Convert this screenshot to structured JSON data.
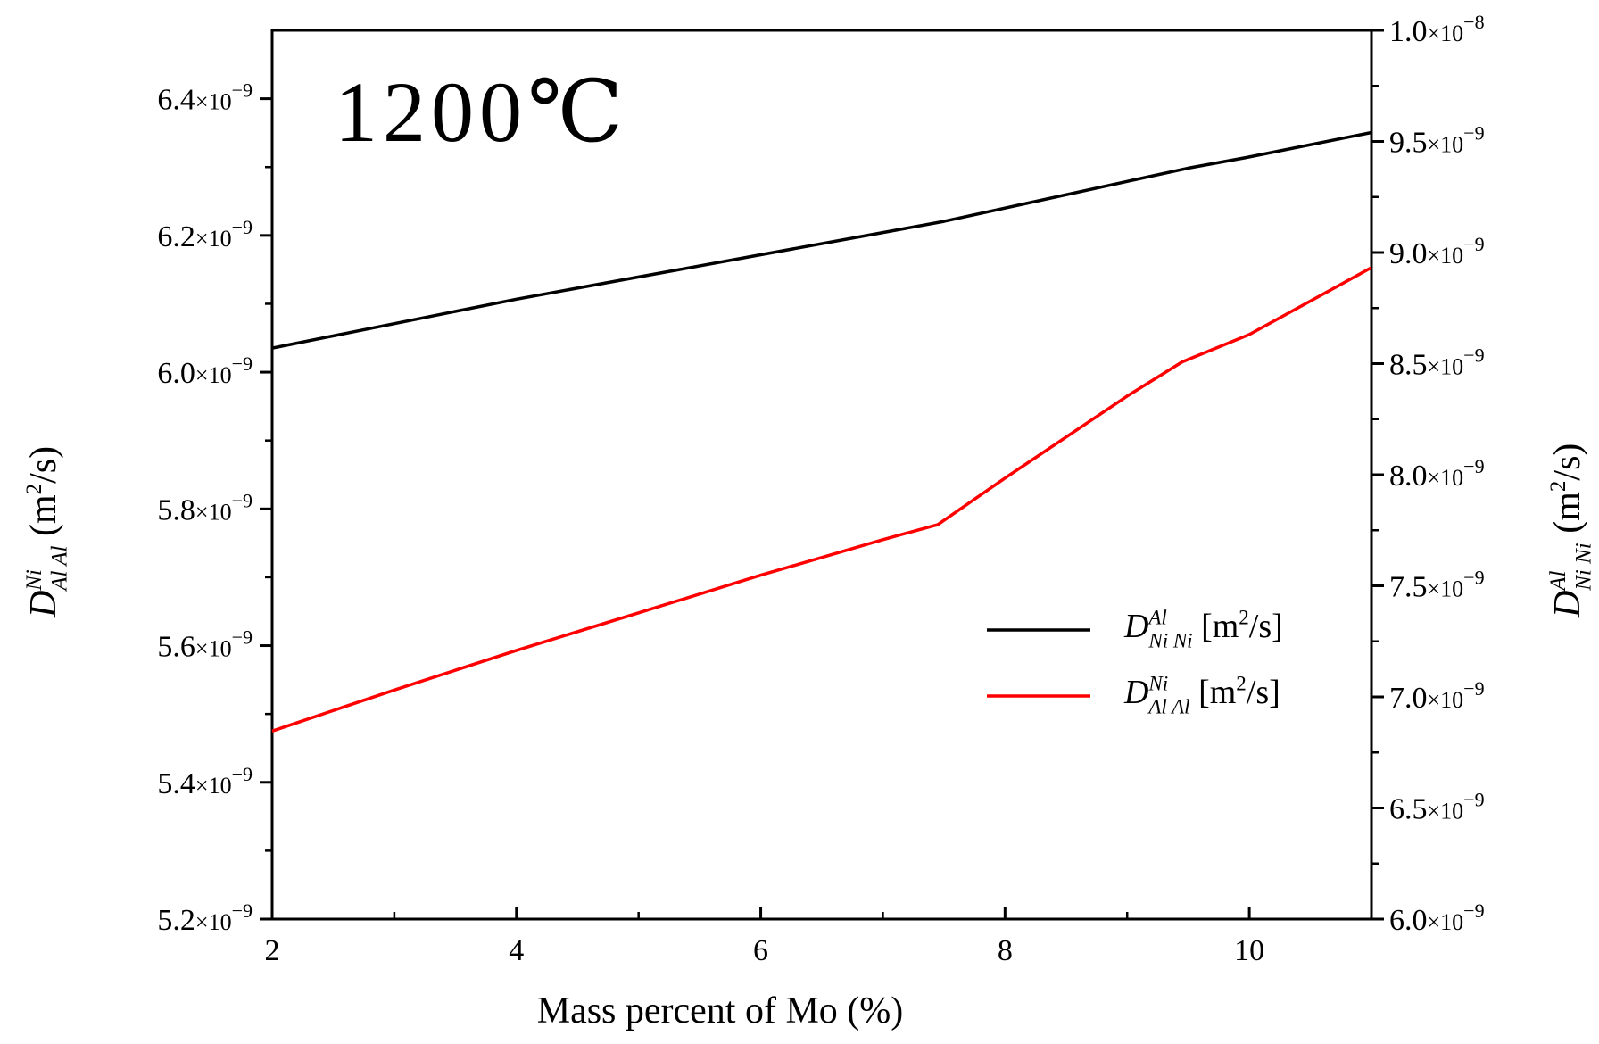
{
  "chart_data": {
    "type": "line",
    "title": "",
    "annotation": "1200℃",
    "xlabel": "Mass percent of Mo (%)",
    "x_ticks": [
      2,
      4,
      6,
      8,
      10
    ],
    "xlim": [
      2,
      11
    ],
    "left_axis": {
      "label": {
        "sym": "D",
        "sup": "Ni",
        "sub": "Al Al",
        "unit_prefix": "(m",
        "unit_exp": "2",
        "unit_suffix": "/s)"
      },
      "ylim": [
        5.2e-09,
        6.5e-09
      ],
      "ticks": [
        {
          "value": 5.2e-09,
          "mant": "5.2",
          "exp": "−9"
        },
        {
          "value": 5.4e-09,
          "mant": "5.4",
          "exp": "−9"
        },
        {
          "value": 5.6e-09,
          "mant": "5.6",
          "exp": "−9"
        },
        {
          "value": 5.8e-09,
          "mant": "5.8",
          "exp": "−9"
        },
        {
          "value": 6e-09,
          "mant": "6.0",
          "exp": "−9"
        },
        {
          "value": 6.2e-09,
          "mant": "6.2",
          "exp": "−9"
        },
        {
          "value": 6.4e-09,
          "mant": "6.4",
          "exp": "−9"
        }
      ]
    },
    "right_axis": {
      "label": {
        "sym": "D",
        "sup": "Al",
        "sub": "Ni Ni",
        "unit_prefix": "(m",
        "unit_exp": "2",
        "unit_suffix": "/s)"
      },
      "ylim": [
        6e-09,
        1e-08
      ],
      "ticks": [
        {
          "value": 6e-09,
          "mant": "6.0",
          "exp": "−9"
        },
        {
          "value": 6.5e-09,
          "mant": "6.5",
          "exp": "−9"
        },
        {
          "value": 7e-09,
          "mant": "7.0",
          "exp": "−9"
        },
        {
          "value": 7.5e-09,
          "mant": "7.5",
          "exp": "−9"
        },
        {
          "value": 8e-09,
          "mant": "8.0",
          "exp": "−9"
        },
        {
          "value": 8.5e-09,
          "mant": "8.5",
          "exp": "−9"
        },
        {
          "value": 9e-09,
          "mant": "9.0",
          "exp": "−9"
        },
        {
          "value": 9.5e-09,
          "mant": "9.5",
          "exp": "−9"
        },
        {
          "value": 1e-08,
          "mant": "1.0",
          "exp": "−8"
        }
      ]
    },
    "series": [
      {
        "name": "D_NiNi^Al [m²/s]",
        "axis": "right",
        "color": "#000000",
        "legend": {
          "sym": "D",
          "sup": "Al",
          "sub": "Ni Ni",
          "unit_prefix": "[m",
          "unit_exp": "2",
          "unit_suffix": "/s]"
        },
        "x": [
          2,
          3,
          4,
          5,
          6,
          7,
          7.5,
          8,
          9,
          9.5,
          10,
          11
        ],
        "y": [
          8.57e-09,
          8.68e-09,
          8.79e-09,
          8.89e-09,
          8.99e-09,
          9.09e-09,
          9.14e-09,
          9.2e-09,
          9.32e-09,
          9.38e-09,
          9.43e-09,
          9.54e-09
        ]
      },
      {
        "name": "D_AlAl^Ni [m²/s]",
        "axis": "left",
        "color": "#ff0000",
        "legend": {
          "sym": "D",
          "sup": "Ni",
          "sub": "Al Al",
          "unit_prefix": "[m",
          "unit_exp": "2",
          "unit_suffix": "/s]"
        },
        "x": [
          2,
          3,
          4,
          5,
          6,
          7,
          7.45,
          8,
          9,
          9.45,
          10,
          11
        ],
        "y": [
          5.475e-09,
          5.535e-09,
          5.593e-09,
          5.648e-09,
          5.703e-09,
          5.755e-09,
          5.777e-09,
          5.845e-09,
          5.965e-09,
          6.015e-09,
          6.055e-09,
          6.153e-09
        ]
      }
    ]
  }
}
